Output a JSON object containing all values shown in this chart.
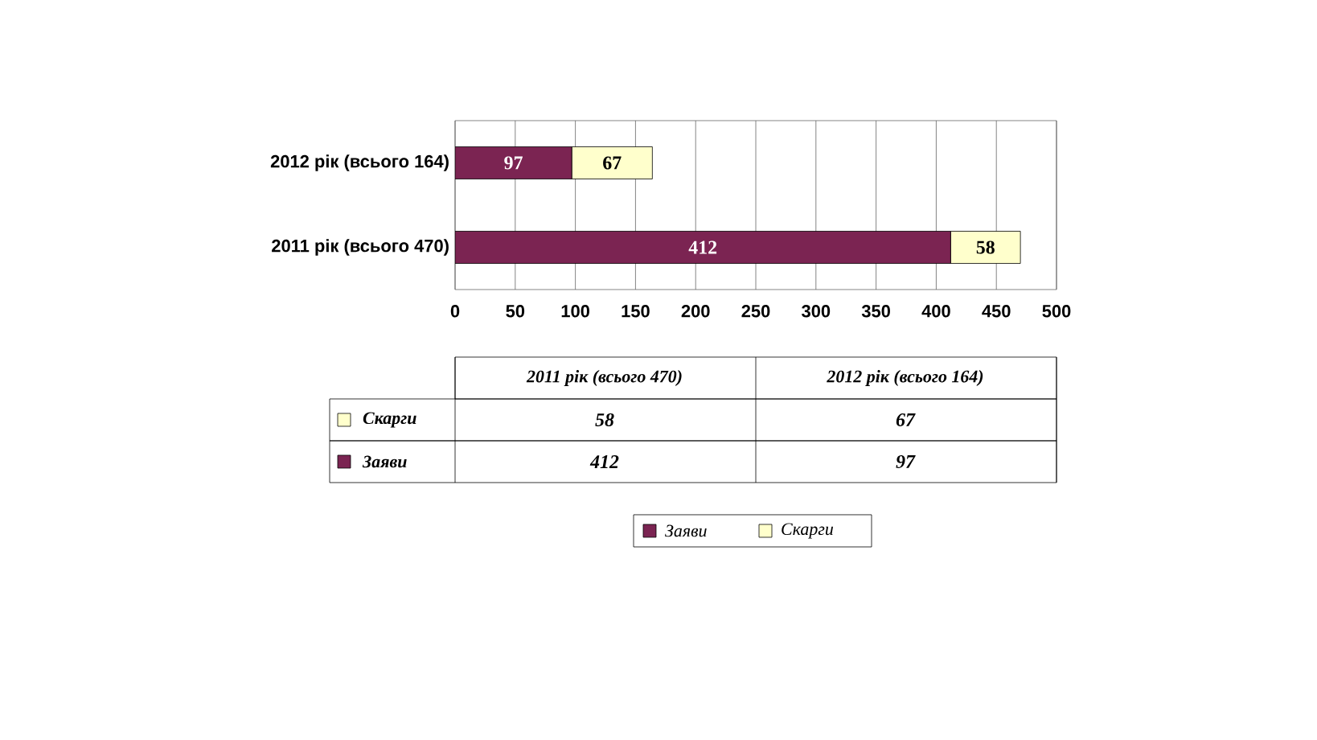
{
  "chart_data": {
    "type": "bar",
    "orientation": "horizontal",
    "stacked": true,
    "categories": [
      "2012 рік (всього 164)",
      "2011 рік (всього 470)"
    ],
    "series": [
      {
        "name": "Заяви",
        "color": "#7b2452",
        "values": [
          97,
          412
        ]
      },
      {
        "name": "Скарги",
        "color": "#ffffcc",
        "values": [
          67,
          58
        ]
      }
    ],
    "xlim": [
      0,
      500
    ],
    "xticks": [
      0,
      50,
      100,
      150,
      200,
      250,
      300,
      350,
      400,
      450,
      500
    ],
    "grid": "x",
    "legend": "bottom",
    "data_labels": true,
    "annotations": [
      "58",
      "67",
      "412",
      "97"
    ]
  }
}
